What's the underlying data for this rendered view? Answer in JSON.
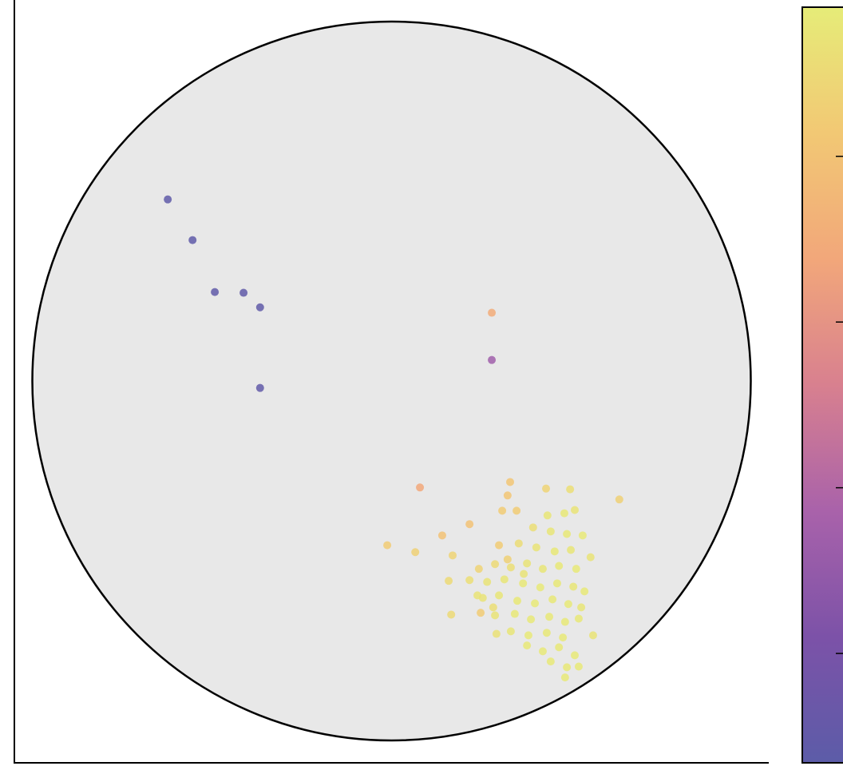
{
  "chart_data": {
    "type": "scatter",
    "xlim": [
      -1.05,
      1.05
    ],
    "ylim": [
      -1.05,
      1.05
    ],
    "clim": [
      0.17,
      2.45
    ],
    "cticks": [
      0.5,
      1,
      1.5,
      2
    ],
    "colormap": [
      "#5c5ca8",
      "#7c52a8",
      "#a962aa",
      "#d8808f",
      "#f2a77a",
      "#f2c874",
      "#e6ec78"
    ],
    "x": [
      -0.623,
      -0.554,
      -0.492,
      -0.412,
      -0.366,
      -0.366,
      0.279,
      0.279,
      0.079,
      0.33,
      0.43,
      0.323,
      0.634,
      0.308,
      0.348,
      0.217,
      0.141,
      -0.012,
      0.066,
      0.17,
      0.497,
      0.299,
      0.248,
      0.166,
      0.159,
      0.323,
      0.434,
      0.481,
      0.51,
      0.394,
      0.443,
      0.488,
      0.532,
      0.354,
      0.403,
      0.454,
      0.499,
      0.554,
      0.243,
      0.288,
      0.332,
      0.377,
      0.421,
      0.466,
      0.514,
      0.217,
      0.266,
      0.314,
      0.366,
      0.414,
      0.461,
      0.506,
      0.537,
      0.254,
      0.299,
      0.35,
      0.399,
      0.448,
      0.492,
      0.528,
      0.288,
      0.343,
      0.388,
      0.439,
      0.483,
      0.521,
      0.332,
      0.381,
      0.432,
      0.477,
      0.561,
      0.292,
      0.377,
      0.421,
      0.466,
      0.51,
      0.443,
      0.488,
      0.521,
      0.483,
      0.239,
      0.283,
      0.368
    ],
    "y": [
      0.501,
      0.389,
      0.246,
      0.244,
      0.204,
      -0.018,
      0.059,
      0.189,
      -0.292,
      -0.277,
      -0.295,
      -0.314,
      -0.325,
      -0.356,
      -0.356,
      -0.393,
      -0.424,
      -0.451,
      -0.47,
      -0.479,
      -0.297,
      -0.451,
      -0.637,
      -0.642,
      -0.549,
      -0.49,
      -0.369,
      -0.363,
      -0.354,
      -0.402,
      -0.413,
      -0.42,
      -0.424,
      -0.446,
      -0.457,
      -0.468,
      -0.464,
      -0.484,
      -0.516,
      -0.503,
      -0.512,
      -0.501,
      -0.516,
      -0.508,
      -0.516,
      -0.547,
      -0.552,
      -0.545,
      -0.556,
      -0.567,
      -0.556,
      -0.565,
      -0.578,
      -0.596,
      -0.589,
      -0.604,
      -0.611,
      -0.6,
      -0.613,
      -0.622,
      -0.644,
      -0.64,
      -0.655,
      -0.648,
      -0.662,
      -0.653,
      -0.688,
      -0.699,
      -0.692,
      -0.705,
      -0.699,
      -0.695,
      -0.727,
      -0.743,
      -0.732,
      -0.754,
      -0.771,
      -0.787,
      -0.785,
      -0.815,
      -0.589,
      -0.622,
      -0.53
    ],
    "c": [
      0.2,
      0.2,
      0.22,
      0.22,
      0.22,
      0.24,
      0.85,
      1.75,
      1.7,
      2.05,
      2.2,
      2.05,
      2.15,
      2.1,
      2.1,
      2.0,
      2.0,
      2.1,
      2.15,
      2.2,
      2.3,
      2.1,
      2.1,
      2.25,
      2.25,
      2.15,
      2.38,
      2.4,
      2.36,
      2.3,
      2.38,
      2.4,
      2.42,
      2.28,
      2.35,
      2.4,
      2.38,
      2.35,
      2.2,
      2.25,
      2.3,
      2.35,
      2.38,
      2.4,
      2.42,
      2.3,
      2.35,
      2.38,
      2.4,
      2.42,
      2.4,
      2.38,
      2.42,
      2.35,
      2.38,
      2.4,
      2.42,
      2.4,
      2.42,
      2.38,
      2.35,
      2.4,
      2.42,
      2.4,
      2.42,
      2.4,
      2.38,
      2.42,
      2.4,
      2.42,
      2.35,
      2.32,
      2.4,
      2.42,
      2.4,
      2.42,
      2.42,
      2.4,
      2.42,
      2.42,
      2.35,
      2.3,
      2.35
    ]
  }
}
